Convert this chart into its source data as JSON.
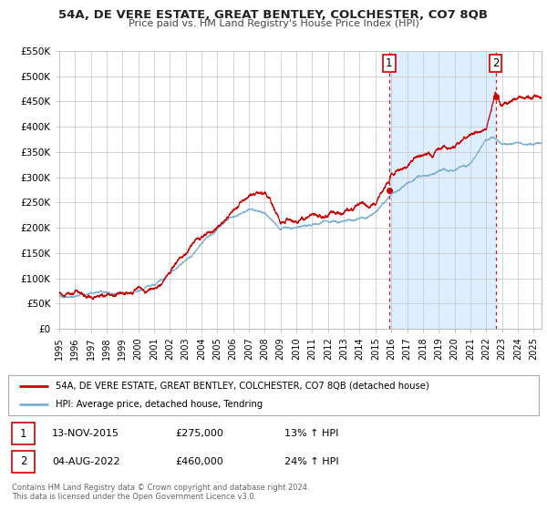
{
  "title": "54A, DE VERE ESTATE, GREAT BENTLEY, COLCHESTER, CO7 8QB",
  "subtitle": "Price paid vs. HM Land Registry's House Price Index (HPI)",
  "ylim": [
    0,
    550000
  ],
  "xlim": [
    1995.0,
    2025.5
  ],
  "yticks": [
    0,
    50000,
    100000,
    150000,
    200000,
    250000,
    300000,
    350000,
    400000,
    450000,
    500000,
    550000
  ],
  "ytick_labels": [
    "£0",
    "£50K",
    "£100K",
    "£150K",
    "£200K",
    "£250K",
    "£300K",
    "£350K",
    "£400K",
    "£450K",
    "£500K",
    "£550K"
  ],
  "xticks": [
    1995,
    1996,
    1997,
    1998,
    1999,
    2000,
    2001,
    2002,
    2003,
    2004,
    2005,
    2006,
    2007,
    2008,
    2009,
    2010,
    2011,
    2012,
    2013,
    2014,
    2015,
    2016,
    2017,
    2018,
    2019,
    2020,
    2021,
    2022,
    2023,
    2024,
    2025
  ],
  "line1_color": "#cc0000",
  "line2_color": "#7ab0d4",
  "shade_color": "#ddeeff",
  "vline1_x": 2015.87,
  "vline2_x": 2022.59,
  "vline_color": "#cc0000",
  "marker1_x": 2015.87,
  "marker1_y": 275000,
  "marker2_x": 2022.59,
  "marker2_y": 460000,
  "marker_color": "#cc0000",
  "annotation1_label": "1",
  "annotation2_label": "2",
  "legend_label1": "54A, DE VERE ESTATE, GREAT BENTLEY, COLCHESTER, CO7 8QB (detached house)",
  "legend_label2": "HPI: Average price, detached house, Tendring",
  "note1_num": "1",
  "note1_date": "13-NOV-2015",
  "note1_price": "£275,000",
  "note1_hpi": "13% ↑ HPI",
  "note2_num": "2",
  "note2_date": "04-AUG-2022",
  "note2_price": "£460,000",
  "note2_hpi": "24% ↑ HPI",
  "footer": "Contains HM Land Registry data © Crown copyright and database right 2024.\nThis data is licensed under the Open Government Licence v3.0.",
  "bg_color": "#ffffff",
  "plot_bg_color": "#ffffff",
  "grid_color": "#cccccc"
}
